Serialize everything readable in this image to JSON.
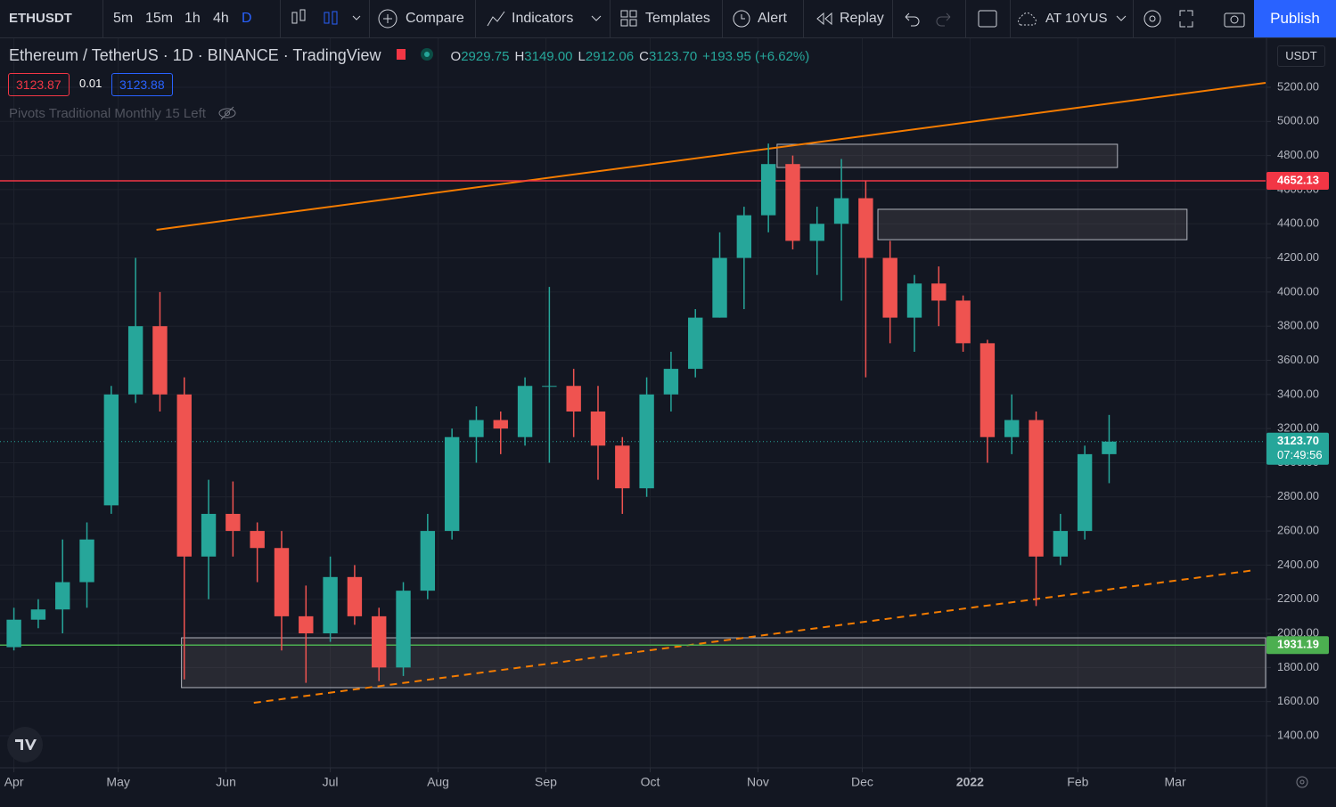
{
  "toolbar": {
    "symbol": "ETHUSDT",
    "intervals": [
      "5m",
      "15m",
      "1h",
      "4h",
      "D"
    ],
    "buttons": [
      "Compare",
      "Indicators",
      "Templates",
      "Alert",
      "Replay"
    ],
    "layout": "AT 10YUS",
    "publish": "Publish"
  },
  "legend": {
    "title": "Ethereum / TetherUS · 1D · BINANCE · TradingView",
    "ohlc": [
      {
        "label": "O",
        "value": "2929.75"
      },
      {
        "label": "H",
        "value": "3149.00"
      },
      {
        "label": "L",
        "value": "2912.06"
      },
      {
        "label": "C",
        "value": "3123.70"
      }
    ],
    "change": "+193.95 (+6.62%)",
    "bid": "3123.87",
    "spread": "0.01",
    "ask": "3123.88",
    "indicator": "Pivots Traditional Monthly 15 Left"
  },
  "currency": "USDT",
  "chart_data": {
    "type": "candlestick",
    "up_color": "#26a69a",
    "down_color": "#ef5350",
    "x": [
      0,
      7,
      14,
      21,
      28,
      35,
      42,
      49,
      56,
      63,
      70,
      77,
      84,
      91,
      98,
      105,
      112,
      119,
      126,
      133,
      140,
      147,
      154,
      161,
      168,
      175,
      182,
      189,
      196,
      203,
      210,
      217,
      224,
      231,
      238,
      245,
      252,
      259,
      266,
      273,
      280,
      287,
      294,
      301,
      308,
      315
    ],
    "open": [
      1919,
      2080,
      2140,
      2300,
      2750,
      3400,
      3800,
      3400,
      2450,
      2700,
      2600,
      2500,
      2100,
      2000,
      2330,
      2100,
      1800,
      2250,
      2600,
      3150,
      3250,
      3150,
      3450,
      3450,
      3300,
      3100,
      2850,
      3400,
      3550,
      3850,
      4200,
      4450,
      4750,
      4300,
      4400,
      4550,
      4200,
      3850,
      4050,
      3950,
      3700,
      3150,
      3250,
      2450,
      2600,
      3050
    ],
    "high": [
      2150,
      2200,
      2550,
      2650,
      3450,
      4200,
      4000,
      3500,
      2900,
      2890,
      2650,
      2600,
      2280,
      2450,
      2400,
      2150,
      2300,
      2700,
      3200,
      3330,
      3300,
      3500,
      4030,
      3550,
      3450,
      3150,
      3500,
      3650,
      3900,
      4350,
      4500,
      4870,
      4800,
      4500,
      4780,
      4650,
      4300,
      4100,
      4150,
      3980,
      3720,
      3400,
      3300,
      2700,
      3100,
      3280
    ],
    "low": [
      1900,
      2030,
      2000,
      2150,
      2700,
      3350,
      3300,
      1730,
      2200,
      2450,
      2300,
      1900,
      1710,
      1950,
      2050,
      1720,
      1750,
      2200,
      2550,
      3000,
      3050,
      3100,
      3000,
      3150,
      2900,
      2700,
      2800,
      3300,
      3500,
      3850,
      3900,
      4350,
      4250,
      4100,
      3950,
      3500,
      3700,
      3650,
      3800,
      3650,
      3000,
      3050,
      2160,
      2400,
      2550,
      2880
    ],
    "close": [
      2080,
      2140,
      2300,
      2550,
      3400,
      3800,
      3400,
      2450,
      2700,
      2600,
      2500,
      2100,
      2000,
      2330,
      2100,
      1800,
      2250,
      2600,
      3150,
      3250,
      3200,
      3450,
      3450,
      3300,
      3100,
      2850,
      3400,
      3550,
      3850,
      4200,
      4450,
      4750,
      4300,
      4400,
      4550,
      4200,
      3850,
      4050,
      3950,
      3700,
      3150,
      3250,
      2450,
      2600,
      3050,
      3123.7
    ],
    "xlim": [
      -4,
      360
    ],
    "xticks": [
      {
        "value": 0,
        "label": "Apr"
      },
      {
        "value": 30,
        "label": "May"
      },
      {
        "value": 61,
        "label": "Jun"
      },
      {
        "value": 91,
        "label": "Jul"
      },
      {
        "value": 122,
        "label": "Aug"
      },
      {
        "value": 153,
        "label": "Sep"
      },
      {
        "value": 183,
        "label": "Oct"
      },
      {
        "value": 214,
        "label": "Nov"
      },
      {
        "value": 244,
        "label": "Dec"
      },
      {
        "value": 275,
        "label": "2022"
      },
      {
        "value": 306,
        "label": "Feb"
      },
      {
        "value": 334,
        "label": "Mar"
      }
    ],
    "ylim": [
      1212,
      5487
    ],
    "yticks": [
      {
        "value": 1400,
        "label": "1400.00"
      },
      {
        "value": 1600,
        "label": "1600.00"
      },
      {
        "value": 1800,
        "label": "1800.00"
      },
      {
        "value": 2000,
        "label": "2000.00"
      },
      {
        "value": 2200,
        "label": "2200.00"
      },
      {
        "value": 2400,
        "label": "2400.00"
      },
      {
        "value": 2600,
        "label": "2600.00"
      },
      {
        "value": 2800,
        "label": "2800.00"
      },
      {
        "value": 3000,
        "label": "3000.00"
      },
      {
        "value": 3200,
        "label": "3200.00"
      },
      {
        "value": 3400,
        "label": "3400.00"
      },
      {
        "value": 3600,
        "label": "3600.00"
      },
      {
        "value": 3800,
        "label": "3800.00"
      },
      {
        "value": 4000,
        "label": "4000.00"
      },
      {
        "value": 4200,
        "label": "4200.00"
      },
      {
        "value": 4400,
        "label": "4400.00"
      },
      {
        "value": 4600,
        "label": "4600.00"
      },
      {
        "value": 4800,
        "label": "4800.00"
      },
      {
        "value": 5000,
        "label": "5000.00"
      },
      {
        "value": 5200,
        "label": "5200.00"
      }
    ],
    "grid": true,
    "last_price": {
      "value": 3123.7,
      "label": "3123.70",
      "countdown": "07:49:56",
      "color": "#26a69a"
    },
    "hlines": [
      {
        "value": 4652.13,
        "color": "#f23645"
      },
      {
        "value": 1931.19,
        "color": "#4caf50"
      }
    ],
    "trendlines": [
      {
        "x": [
          41,
          360
        ],
        "y": [
          4365,
          5226
        ],
        "color": "#f57c00",
        "dashed": false
      },
      {
        "x": [
          69,
          357
        ],
        "y": [
          1593,
          2371
        ],
        "color": "#f57c00",
        "dashed": true
      }
    ],
    "boxes": [
      {
        "x": [
          219.5,
          317.4
        ],
        "y": [
          4730,
          4866
        ]
      },
      {
        "x": [
          248.5,
          337.4
        ],
        "y": [
          4307,
          4485
        ]
      },
      {
        "x": [
          48.2,
          360
        ],
        "y": [
          1682,
          1974
        ]
      }
    ]
  }
}
